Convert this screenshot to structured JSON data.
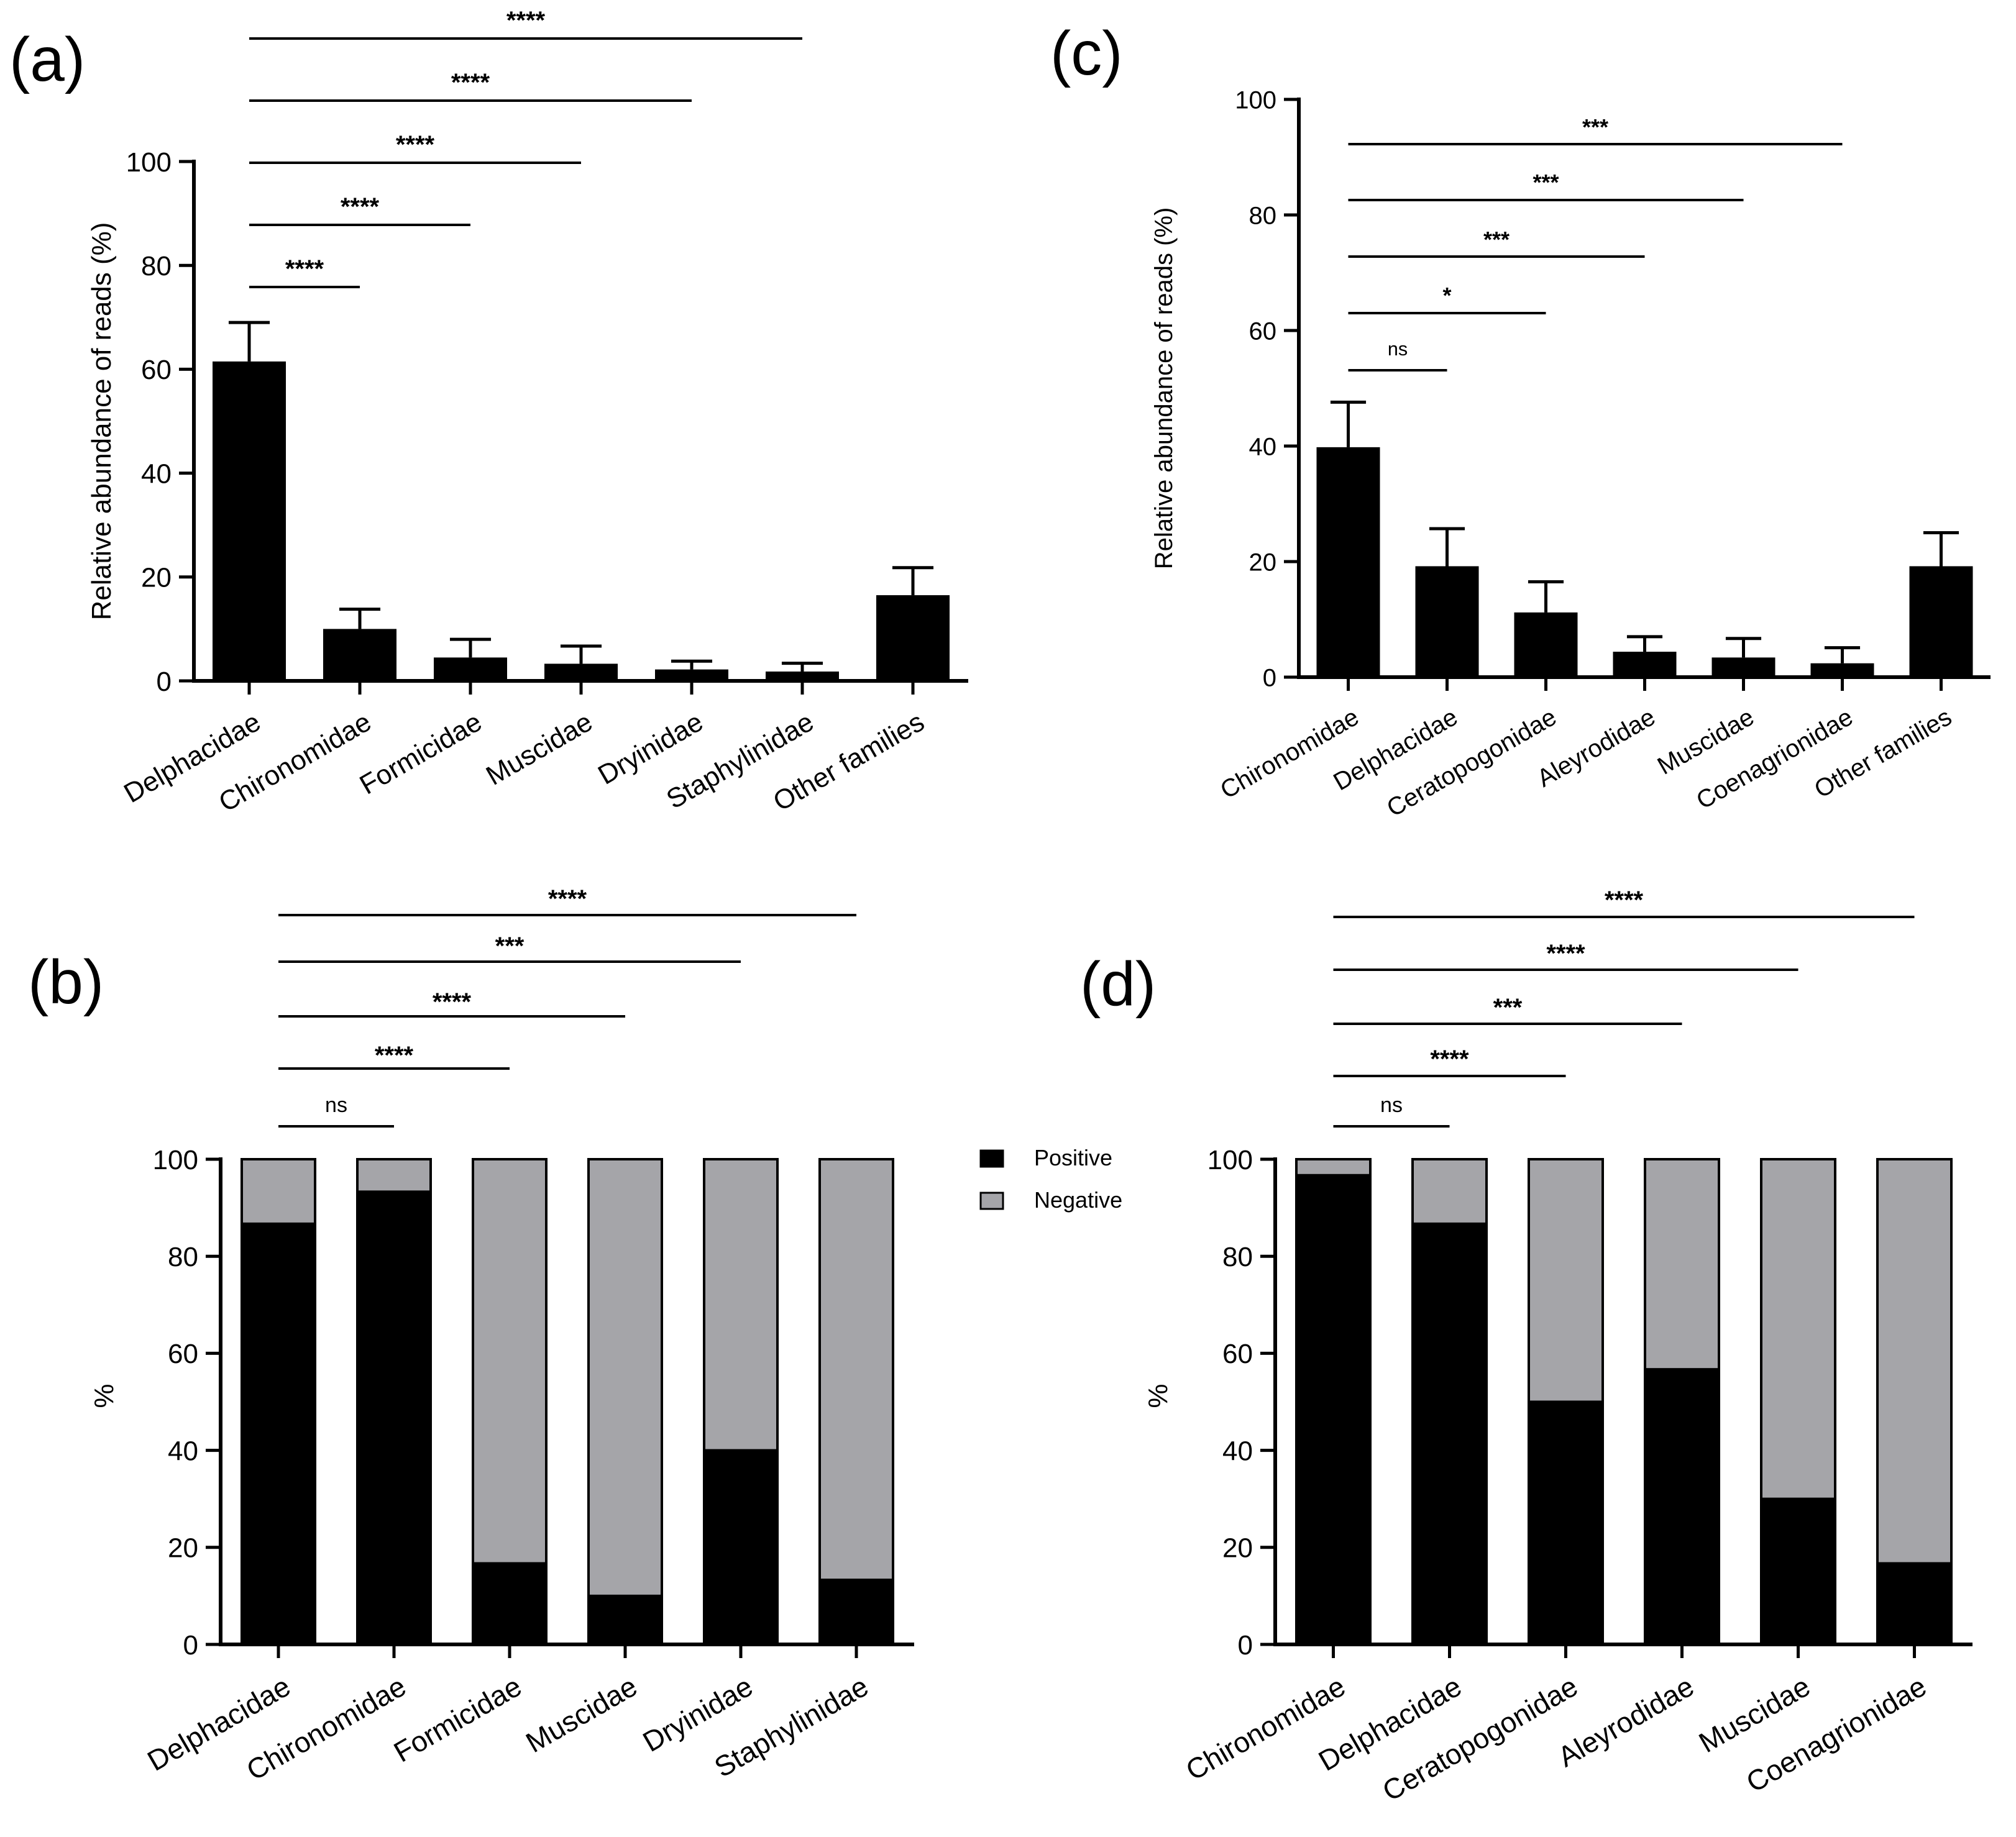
{
  "chart_data": [
    {
      "panel_label": "(a)",
      "type": "bar",
      "ylabel": "Relative abundance of reads (%)",
      "ylim": [
        0,
        100
      ],
      "yticks": [
        "0",
        "20",
        "40",
        "60",
        "80",
        "100"
      ],
      "categories": [
        "Delphacidae",
        "Chironomidae",
        "Formicidae",
        "Muscidae",
        "Dryinidae",
        "Staphylinidae",
        "Other families"
      ],
      "values": [
        61.5,
        10.0,
        4.5,
        3.3,
        2.2,
        1.8,
        16.5
      ],
      "error_upper": [
        69.0,
        13.8,
        8.0,
        6.7,
        3.8,
        3.4,
        21.8
      ],
      "significance": [
        {
          "from": 0,
          "to": 1,
          "label": "****"
        },
        {
          "from": 0,
          "to": 2,
          "label": "****"
        },
        {
          "from": 0,
          "to": 3,
          "label": "****"
        },
        {
          "from": 0,
          "to": 4,
          "label": "****"
        },
        {
          "from": 0,
          "to": 5,
          "label": "****"
        }
      ]
    },
    {
      "panel_label": "(b)",
      "type": "bar",
      "stacked": true,
      "ylabel": "%",
      "ylim": [
        0,
        100
      ],
      "yticks": [
        "0",
        "20",
        "40",
        "60",
        "80",
        "100"
      ],
      "categories": [
        "Delphacidae",
        "Chironomidae",
        "Formicidae",
        "Muscidae",
        "Dryinidae",
        "Staphylinidae"
      ],
      "series": [
        {
          "name": "Positive",
          "color": "#000000",
          "values": [
            86.7,
            93.3,
            16.7,
            10.0,
            40.0,
            13.3
          ]
        },
        {
          "name": "Negative",
          "color": "#a5a5a9",
          "values": [
            13.3,
            6.7,
            83.3,
            90.0,
            60.0,
            86.7
          ]
        }
      ],
      "legend": [
        "Positive",
        "Negative"
      ],
      "legend_position": "right",
      "significance": [
        {
          "from": 0,
          "to": 1,
          "label": "ns"
        },
        {
          "from": 0,
          "to": 2,
          "label": "****"
        },
        {
          "from": 0,
          "to": 3,
          "label": "****"
        },
        {
          "from": 0,
          "to": 4,
          "label": "***"
        },
        {
          "from": 0,
          "to": 5,
          "label": "****"
        }
      ]
    },
    {
      "panel_label": "(c)",
      "type": "bar",
      "ylabel": "Relative abundance of reads (%)",
      "ylim": [
        0,
        100
      ],
      "yticks": [
        "0",
        "20",
        "40",
        "60",
        "80",
        "100"
      ],
      "categories": [
        "Chironomidae",
        "Delphacidae",
        "Ceratopogonidae",
        "Aleyrodidae",
        "Muscidae",
        "Coenagrionidae",
        "Other families"
      ],
      "values": [
        39.8,
        19.2,
        11.2,
        4.4,
        3.4,
        2.4,
        19.2
      ],
      "error_upper": [
        47.6,
        25.7,
        16.5,
        7.0,
        6.7,
        5.1,
        25.0
      ],
      "significance": [
        {
          "from": 0,
          "to": 1,
          "label": "ns"
        },
        {
          "from": 0,
          "to": 2,
          "label": "*"
        },
        {
          "from": 0,
          "to": 3,
          "label": "***"
        },
        {
          "from": 0,
          "to": 4,
          "label": "***"
        },
        {
          "from": 0,
          "to": 5,
          "label": "***"
        }
      ]
    },
    {
      "panel_label": "(d)",
      "type": "bar",
      "stacked": true,
      "ylabel": "%",
      "ylim": [
        0,
        100
      ],
      "yticks": [
        "0",
        "20",
        "40",
        "60",
        "80",
        "100"
      ],
      "categories": [
        "Chironomidae",
        "Delphacidae",
        "Ceratopogonidae",
        "Aleyrodidae",
        "Muscidae",
        "Coenagrionidae"
      ],
      "series": [
        {
          "name": "Positive",
          "color": "#000000",
          "values": [
            96.7,
            86.7,
            50.0,
            56.7,
            30.0,
            16.7
          ]
        },
        {
          "name": "Negative",
          "color": "#a5a5a9",
          "values": [
            3.3,
            13.3,
            50.0,
            43.3,
            70.0,
            83.3
          ]
        }
      ],
      "significance": [
        {
          "from": 0,
          "to": 1,
          "label": "ns"
        },
        {
          "from": 0,
          "to": 2,
          "label": "****"
        },
        {
          "from": 0,
          "to": 3,
          "label": "***"
        },
        {
          "from": 0,
          "to": 4,
          "label": "****"
        },
        {
          "from": 0,
          "to": 5,
          "label": "****"
        }
      ]
    }
  ]
}
